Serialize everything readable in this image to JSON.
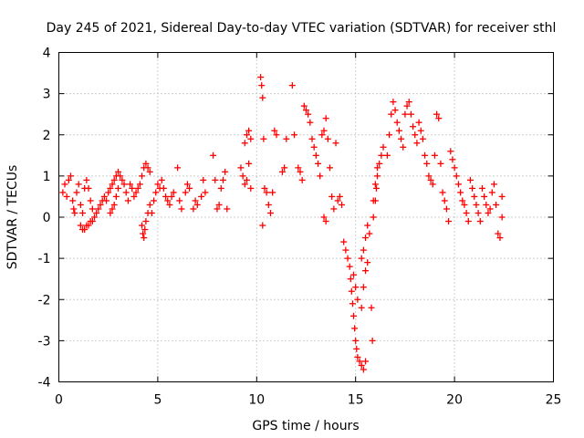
{
  "chart_data": {
    "type": "scatter",
    "title": "Day 245 of 2021, Sidereal Day-to-day VTEC variation (SDTVAR) for receiver sthl",
    "xlabel": "GPS time / hours",
    "ylabel": "SDTVAR / TECUs",
    "xlim": [
      0,
      25
    ],
    "ylim": [
      -4,
      4
    ],
    "xticks": [
      "0",
      "5",
      "10",
      "15",
      "20",
      "25"
    ],
    "yticks": [
      "-4",
      "-3",
      "-2",
      "-1",
      "0",
      "1",
      "2",
      "3",
      "4"
    ],
    "grid": true,
    "marker": "plus",
    "color": "#ff0000",
    "series": [
      {
        "name": "SDTVAR",
        "points": [
          [
            0.2,
            0.6
          ],
          [
            0.3,
            0.8
          ],
          [
            0.4,
            0.5
          ],
          [
            0.5,
            0.9
          ],
          [
            0.6,
            1.0
          ],
          [
            0.7,
            0.4
          ],
          [
            0.75,
            0.2
          ],
          [
            0.8,
            0.1
          ],
          [
            0.9,
            0.6
          ],
          [
            1.0,
            0.8
          ],
          [
            1.1,
            0.3
          ],
          [
            1.2,
            0.1
          ],
          [
            1.3,
            0.7
          ],
          [
            1.4,
            0.9
          ],
          [
            1.5,
            0.7
          ],
          [
            1.6,
            0.4
          ],
          [
            1.7,
            0.2
          ],
          [
            1.1,
            -0.2
          ],
          [
            1.2,
            -0.3
          ],
          [
            1.3,
            -0.3
          ],
          [
            1.4,
            -0.2
          ],
          [
            1.5,
            -0.2
          ],
          [
            1.6,
            -0.1
          ],
          [
            1.7,
            -0.1
          ],
          [
            1.8,
            0.0
          ],
          [
            1.9,
            0.1
          ],
          [
            2.0,
            0.2
          ],
          [
            2.1,
            0.3
          ],
          [
            2.2,
            0.4
          ],
          [
            2.3,
            0.5
          ],
          [
            2.4,
            0.4
          ],
          [
            2.5,
            0.6
          ],
          [
            2.6,
            0.7
          ],
          [
            2.7,
            0.8
          ],
          [
            2.8,
            0.9
          ],
          [
            2.9,
            1.0
          ],
          [
            3.0,
            1.1
          ],
          [
            3.1,
            1.0
          ],
          [
            3.2,
            0.9
          ],
          [
            3.3,
            0.8
          ],
          [
            3.4,
            0.6
          ],
          [
            3.5,
            0.4
          ],
          [
            2.6,
            0.1
          ],
          [
            2.7,
            0.2
          ],
          [
            2.8,
            0.3
          ],
          [
            2.9,
            0.5
          ],
          [
            3.0,
            0.7
          ],
          [
            3.6,
            0.8
          ],
          [
            3.7,
            0.7
          ],
          [
            3.8,
            0.5
          ],
          [
            3.9,
            0.6
          ],
          [
            4.0,
            0.7
          ],
          [
            4.1,
            0.8
          ],
          [
            4.2,
            1.0
          ],
          [
            4.3,
            1.2
          ],
          [
            4.4,
            1.3
          ],
          [
            4.5,
            1.2
          ],
          [
            4.6,
            1.1
          ],
          [
            4.2,
            -0.2
          ],
          [
            4.25,
            -0.4
          ],
          [
            4.3,
            -0.5
          ],
          [
            4.35,
            -0.3
          ],
          [
            4.4,
            -0.1
          ],
          [
            4.5,
            0.1
          ],
          [
            4.6,
            0.3
          ],
          [
            4.7,
            0.1
          ],
          [
            4.8,
            0.4
          ],
          [
            4.9,
            0.6
          ],
          [
            5.0,
            0.8
          ],
          [
            5.1,
            0.7
          ],
          [
            5.2,
            0.9
          ],
          [
            5.3,
            0.7
          ],
          [
            5.4,
            0.5
          ],
          [
            5.5,
            0.4
          ],
          [
            5.6,
            0.3
          ],
          [
            5.7,
            0.5
          ],
          [
            5.8,
            0.6
          ],
          [
            6.0,
            1.2
          ],
          [
            6.1,
            0.4
          ],
          [
            6.2,
            0.2
          ],
          [
            6.4,
            0.6
          ],
          [
            6.5,
            0.8
          ],
          [
            6.6,
            0.7
          ],
          [
            6.8,
            0.2
          ],
          [
            6.9,
            0.4
          ],
          [
            7.0,
            0.3
          ],
          [
            7.2,
            0.5
          ],
          [
            7.3,
            0.9
          ],
          [
            7.4,
            0.6
          ],
          [
            7.8,
            1.5
          ],
          [
            7.9,
            0.9
          ],
          [
            8.0,
            0.2
          ],
          [
            8.1,
            0.3
          ],
          [
            8.2,
            0.7
          ],
          [
            8.3,
            0.9
          ],
          [
            8.4,
            1.1
          ],
          [
            8.5,
            0.2
          ],
          [
            9.2,
            1.2
          ],
          [
            9.3,
            1.0
          ],
          [
            9.4,
            0.8
          ],
          [
            9.5,
            0.9
          ],
          [
            9.6,
            1.3
          ],
          [
            9.7,
            0.7
          ],
          [
            9.4,
            1.8
          ],
          [
            9.5,
            2.0
          ],
          [
            9.6,
            2.1
          ],
          [
            9.7,
            1.9
          ],
          [
            10.2,
            3.4
          ],
          [
            10.25,
            3.2
          ],
          [
            10.3,
            2.9
          ],
          [
            10.35,
            1.9
          ],
          [
            10.4,
            0.7
          ],
          [
            10.5,
            0.6
          ],
          [
            10.3,
            -0.2
          ],
          [
            10.6,
            0.3
          ],
          [
            10.7,
            0.1
          ],
          [
            10.8,
            0.6
          ],
          [
            10.9,
            2.1
          ],
          [
            11.0,
            2.0
          ],
          [
            11.3,
            1.1
          ],
          [
            11.4,
            1.2
          ],
          [
            11.5,
            1.9
          ],
          [
            11.8,
            3.2
          ],
          [
            11.9,
            2.0
          ],
          [
            12.1,
            1.2
          ],
          [
            12.2,
            1.1
          ],
          [
            12.3,
            0.9
          ],
          [
            12.4,
            2.7
          ],
          [
            12.5,
            2.6
          ],
          [
            12.6,
            2.5
          ],
          [
            12.7,
            2.3
          ],
          [
            12.8,
            1.9
          ],
          [
            12.9,
            1.7
          ],
          [
            13.0,
            1.5
          ],
          [
            13.1,
            1.3
          ],
          [
            13.2,
            1.0
          ],
          [
            13.3,
            2.0
          ],
          [
            13.4,
            2.1
          ],
          [
            13.5,
            2.4
          ],
          [
            13.6,
            1.9
          ],
          [
            13.7,
            1.2
          ],
          [
            13.8,
            0.5
          ],
          [
            13.4,
            0.0
          ],
          [
            13.5,
            -0.1
          ],
          [
            13.9,
            0.2
          ],
          [
            14.0,
            1.8
          ],
          [
            14.1,
            0.4
          ],
          [
            14.2,
            0.5
          ],
          [
            14.3,
            0.3
          ],
          [
            14.4,
            -0.6
          ],
          [
            14.5,
            -0.8
          ],
          [
            14.6,
            -1.0
          ],
          [
            14.7,
            -1.2
          ],
          [
            14.75,
            -1.5
          ],
          [
            14.8,
            -1.8
          ],
          [
            14.85,
            -2.1
          ],
          [
            14.9,
            -2.4
          ],
          [
            14.95,
            -2.7
          ],
          [
            15.0,
            -3.0
          ],
          [
            15.05,
            -3.2
          ],
          [
            15.1,
            -3.4
          ],
          [
            14.9,
            -1.4
          ],
          [
            15.0,
            -1.7
          ],
          [
            15.1,
            -2.0
          ],
          [
            15.2,
            -3.5
          ],
          [
            15.3,
            -3.6
          ],
          [
            15.4,
            -3.7
          ],
          [
            15.5,
            -3.5
          ],
          [
            15.3,
            -1.0
          ],
          [
            15.4,
            -0.8
          ],
          [
            15.5,
            -0.5
          ],
          [
            15.6,
            -0.2
          ],
          [
            15.7,
            -0.4
          ],
          [
            15.8,
            -2.2
          ],
          [
            15.85,
            -3.0
          ],
          [
            15.3,
            -2.2
          ],
          [
            15.4,
            -1.7
          ],
          [
            15.5,
            -1.3
          ],
          [
            15.6,
            -1.1
          ],
          [
            15.9,
            0.0
          ],
          [
            16.0,
            0.4
          ],
          [
            16.05,
            0.7
          ],
          [
            16.1,
            1.0
          ],
          [
            16.2,
            1.3
          ],
          [
            16.3,
            1.5
          ],
          [
            16.4,
            1.7
          ],
          [
            15.9,
            0.4
          ],
          [
            16.0,
            0.8
          ],
          [
            16.1,
            1.2
          ],
          [
            16.6,
            1.5
          ],
          [
            16.7,
            2.0
          ],
          [
            16.8,
            2.5
          ],
          [
            16.9,
            2.8
          ],
          [
            17.0,
            2.6
          ],
          [
            17.1,
            2.3
          ],
          [
            17.2,
            2.1
          ],
          [
            17.3,
            1.9
          ],
          [
            17.4,
            1.7
          ],
          [
            17.5,
            2.5
          ],
          [
            17.6,
            2.7
          ],
          [
            17.7,
            2.8
          ],
          [
            17.8,
            2.5
          ],
          [
            17.9,
            2.2
          ],
          [
            18.0,
            2.0
          ],
          [
            18.1,
            1.8
          ],
          [
            18.2,
            2.3
          ],
          [
            18.3,
            2.1
          ],
          [
            18.4,
            1.9
          ],
          [
            18.5,
            1.5
          ],
          [
            18.6,
            1.3
          ],
          [
            18.7,
            1.0
          ],
          [
            18.8,
            0.9
          ],
          [
            18.9,
            0.8
          ],
          [
            19.0,
            1.5
          ],
          [
            19.1,
            2.5
          ],
          [
            19.2,
            2.4
          ],
          [
            19.3,
            1.3
          ],
          [
            19.4,
            0.6
          ],
          [
            19.5,
            0.4
          ],
          [
            19.6,
            0.2
          ],
          [
            19.7,
            -0.1
          ],
          [
            19.8,
            1.6
          ],
          [
            19.9,
            1.4
          ],
          [
            20.0,
            1.2
          ],
          [
            20.1,
            1.0
          ],
          [
            20.2,
            0.8
          ],
          [
            20.3,
            0.6
          ],
          [
            20.4,
            0.4
          ],
          [
            20.5,
            0.3
          ],
          [
            20.6,
            0.1
          ],
          [
            20.7,
            -0.1
          ],
          [
            20.8,
            0.9
          ],
          [
            20.9,
            0.7
          ],
          [
            21.0,
            0.5
          ],
          [
            21.1,
            0.3
          ],
          [
            21.2,
            0.1
          ],
          [
            21.3,
            -0.1
          ],
          [
            21.4,
            0.7
          ],
          [
            21.5,
            0.5
          ],
          [
            21.6,
            0.3
          ],
          [
            21.7,
            0.1
          ],
          [
            21.8,
            0.2
          ],
          [
            21.9,
            0.6
          ],
          [
            22.0,
            0.8
          ],
          [
            22.1,
            0.3
          ],
          [
            22.2,
            -0.4
          ],
          [
            22.3,
            -0.5
          ],
          [
            22.4,
            0.5
          ],
          [
            22.4,
            0.0
          ]
        ]
      }
    ]
  }
}
